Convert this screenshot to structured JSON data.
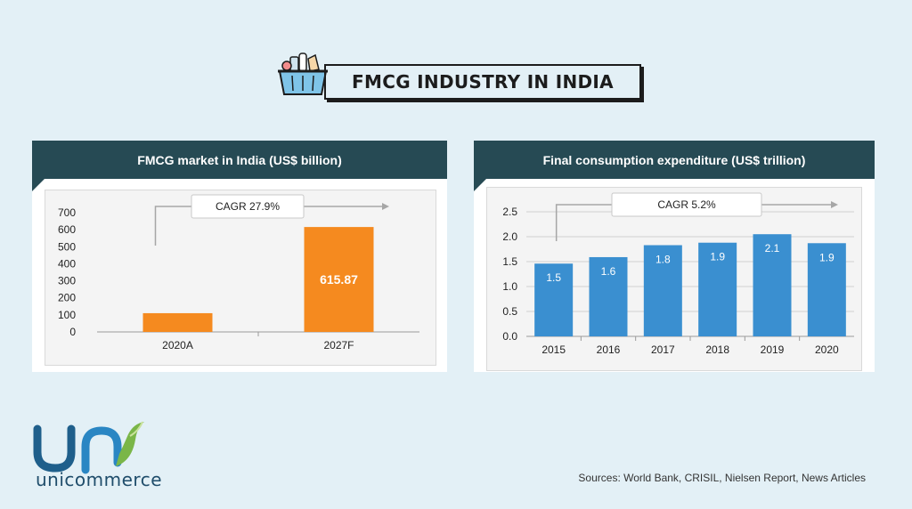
{
  "header": {
    "title": "FMCG INDUSTRY IN INDIA",
    "icon": "grocery-basket-icon"
  },
  "colors": {
    "accent_orange": "#f58a1f",
    "bar_blue": "#3a8fd0",
    "panel_header": "#264a54",
    "logo_blue": "#1f5f8b",
    "logo_green": "#7ab648"
  },
  "chart_data": [
    {
      "type": "bar",
      "title": "FMCG market in India (US$ billion)",
      "categories": [
        "2020A",
        "2027F"
      ],
      "values": [
        110,
        615.87
      ],
      "data_labels": [
        "",
        "615.87"
      ],
      "ylim": [
        0,
        700
      ],
      "yticks": [
        "0",
        "100",
        "200",
        "300",
        "400",
        "500",
        "600",
        "700"
      ],
      "annotation": "CAGR 27.9%",
      "xlabel": "",
      "ylabel": ""
    },
    {
      "type": "bar",
      "title": "Final consumption expenditure (US$ trillion)",
      "categories": [
        "2015",
        "2016",
        "2017",
        "2018",
        "2019",
        "2020"
      ],
      "values": [
        1.46,
        1.59,
        1.83,
        1.88,
        2.05,
        1.87
      ],
      "data_labels": [
        "1.5",
        "1.6",
        "1.8",
        "1.9",
        "2.1",
        "1.9"
      ],
      "ylim": [
        0,
        2.5
      ],
      "yticks": [
        "0.0",
        "0.5",
        "1.0",
        "1.5",
        "2.0",
        "2.5"
      ],
      "annotation": "CAGR 5.2%",
      "xlabel": "",
      "ylabel": ""
    }
  ],
  "footer": {
    "brand": "unicommerce",
    "sources": "Sources: World Bank, CRISIL, Nielsen Report, News Articles"
  }
}
